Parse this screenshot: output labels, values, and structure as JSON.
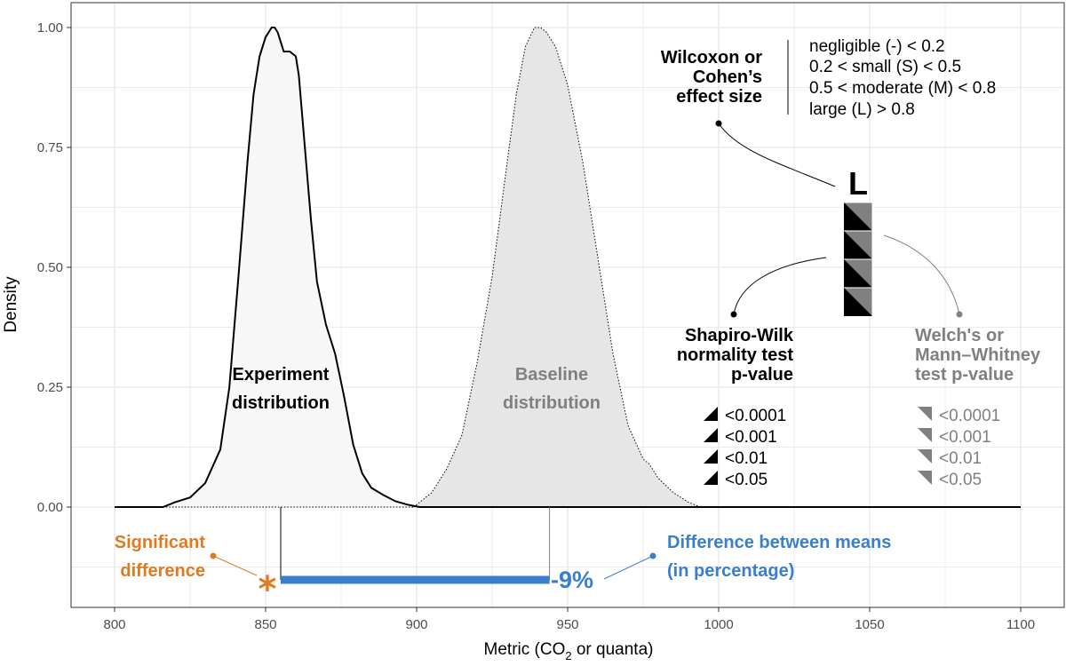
{
  "chart_data": {
    "type": "area",
    "xlabel_main": "Metric (CO",
    "xlabel_sub": "2",
    "xlabel_tail": " or quanta)",
    "ylabel": "Density",
    "xlim": [
      800,
      1100
    ],
    "ylim": [
      -0.18,
      1.05
    ],
    "x_ticks": [
      800,
      850,
      900,
      950,
      1000,
      1050,
      1100
    ],
    "y_ticks": [
      0.0,
      0.25,
      0.5,
      0.75,
      1.0
    ],
    "y_tick_labels": [
      "0.00",
      "0.25",
      "0.50",
      "0.75",
      "1.00"
    ],
    "grid": true,
    "series": [
      {
        "name": "Experiment distribution",
        "label_line1": "Experiment",
        "label_line2": "distribution",
        "color": "#000000",
        "fill": "#f7f7f7",
        "x": [
          816,
          820,
          825,
          830,
          835,
          838,
          841,
          844,
          846,
          848,
          850,
          852,
          853,
          854,
          855,
          856,
          858,
          860,
          861,
          863,
          865,
          867,
          870,
          873,
          876,
          879,
          882,
          885,
          889,
          893,
          897,
          901
        ],
        "y": [
          0.0,
          0.01,
          0.02,
          0.05,
          0.12,
          0.25,
          0.48,
          0.72,
          0.86,
          0.94,
          0.98,
          1.0,
          1.0,
          0.99,
          0.97,
          0.95,
          0.95,
          0.94,
          0.9,
          0.75,
          0.6,
          0.47,
          0.38,
          0.32,
          0.23,
          0.13,
          0.07,
          0.04,
          0.025,
          0.012,
          0.005,
          0.0
        ]
      },
      {
        "name": "Baseline distribution",
        "label_line1": "Baseline",
        "label_line2": "distribution",
        "color": "#000000",
        "fill": "#e6e6e6",
        "label_color": "#808080",
        "x": [
          899,
          905,
          910,
          915,
          920,
          925,
          930,
          933,
          936,
          939,
          941,
          943,
          946,
          950,
          955,
          960,
          965,
          970,
          975,
          977,
          980,
          985,
          990,
          994
        ],
        "y": [
          0.0,
          0.03,
          0.08,
          0.15,
          0.3,
          0.48,
          0.72,
          0.86,
          0.96,
          1.0,
          1.0,
          0.99,
          0.96,
          0.88,
          0.72,
          0.52,
          0.32,
          0.17,
          0.1,
          0.09,
          0.06,
          0.03,
          0.01,
          0.0
        ]
      }
    ],
    "mean_experiment": 855,
    "mean_baseline": 944,
    "difference_label": "-9%",
    "difference_color": "#3a7fcc",
    "significance_mark": "*",
    "significance_color": "#e07a1f"
  },
  "annotations": {
    "significant_line1": "Significant",
    "significant_line2": "difference",
    "difference_line1": "Difference between means",
    "difference_line2": "(in percentage)",
    "effect_title_line1": "Wilcoxon or",
    "effect_title_line2": "Cohen’s",
    "effect_title_line3": "effect size",
    "effect_levels": [
      "negligible (-) < 0.2",
      "0.2 < small (S) < 0.5",
      "0.5 < moderate (M) < 0.8",
      "large (L) > 0.8"
    ],
    "effect_letter": "L",
    "shapiro_line1": "Shapiro-Wilk",
    "shapiro_line2": "normality test",
    "shapiro_line3": "p-value",
    "welch_line1": "Welch's or",
    "welch_line2": "Mann–Whitney",
    "welch_line3": "test p-value",
    "pvalue_levels": [
      "<0.0001",
      "<0.001",
      "<0.01",
      "<0.05"
    ],
    "colors": {
      "black": "#000000",
      "grey": "#808080",
      "grid": "#ebebeb"
    }
  }
}
